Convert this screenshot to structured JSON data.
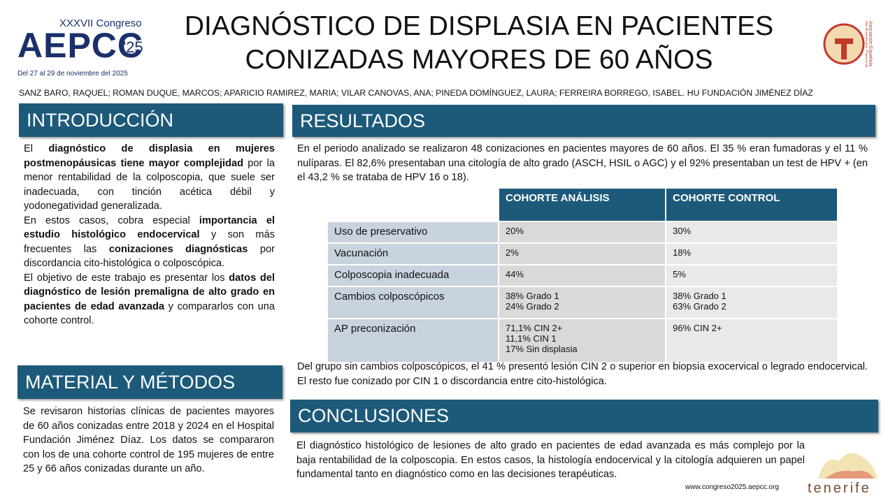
{
  "header": {
    "logo": {
      "edition": "XXXVII Congreso",
      "brand": "AEPCC",
      "year": "'25",
      "dates": "Del 27 al 29 de noviembre del 2025"
    },
    "title": [
      "DIAGNÓSTICO DE DISPLASIA EN PACIENTES",
      "CONIZADAS MAYORES DE 60 AÑOS"
    ],
    "society": "Asociación Española de Patología Cervical y Colposcopia",
    "authors": "SANZ BARO, RAQUEL; ROMAN DUQUE, MARCOS; APARICIO RAMIREZ, MARIA; VILAR CANOVAS, ANA; PINEDA DOMÍNGUEZ, LAURA; FERREIRA BORREGO, ISABEL. HU FUNDACIÓN JIMÉNEZ DÍAZ"
  },
  "introduccion": {
    "heading": "INTRODUCCIÓN",
    "paragraphs": [
      [
        {
          "text": "El ",
          "bold": false
        },
        {
          "text": "diagnóstico de displasia en mujeres postmenopáusicas tiene mayor complejidad",
          "bold": true
        },
        {
          "text": " por la menor rentabilidad de la colposcopia, que suele ser inadecuada, con tinción acética débil y yodonegatividad generalizada.",
          "bold": false
        }
      ],
      [
        {
          "text": "En estos casos, cobra especial ",
          "bold": false
        },
        {
          "text": "importancia el estudio histológico endocervical",
          "bold": true
        },
        {
          "text": " y son más frecuentes las ",
          "bold": false
        },
        {
          "text": "conizaciones diagnósticas",
          "bold": true
        },
        {
          "text": " por discordancia cito-histológica o colposcópica.",
          "bold": false
        }
      ],
      [
        {
          "text": "El objetivo de este trabajo es presentar los ",
          "bold": false
        },
        {
          "text": "datos del diagnóstico de lesión premaligna de alto grado en pacientes de edad avanzada",
          "bold": true
        },
        {
          "text": " y compararlos con una cohorte control.",
          "bold": false
        }
      ]
    ]
  },
  "material": {
    "heading": "MATERIAL Y MÉTODOS",
    "text": "Se revisaron historias clínicas de pacientes mayores de 60 años conizadas entre 2018 y 2024 en el Hospital Fundación Jiménez Díaz. Los datos se compararon con los de una cohorte control de 195 mujeres de entre 25 y 66 años conizadas durante un año."
  },
  "resultados": {
    "heading": "RESULTADOS",
    "intro": "En el periodo analizado se realizaron 48 conizaciones en pacientes mayores de 60 años. El 35 % eran fumadoras y el 11 % nulíparas. El 82,6% presentaban una citología de alto grado (ASCH, HSIL o AGC) y el 92% presentaban un test de HPV + (en el 43,2 % se trataba de HPV 16 o 18).",
    "table": {
      "columns": [
        "COHORTE ANÁLISIS",
        "COHORTE CONTROL"
      ],
      "rows": [
        {
          "label": "Uso de preservativo",
          "cells": [
            [
              "20%"
            ],
            [
              "30%"
            ]
          ]
        },
        {
          "label": "Vacunación",
          "cells": [
            [
              "2%"
            ],
            [
              "18%"
            ]
          ]
        },
        {
          "label": "Colposcopia inadecuada",
          "cells": [
            [
              "44%"
            ],
            [
              "5%"
            ]
          ]
        },
        {
          "label": "Cambios colposcópicos",
          "cells": [
            [
              "38% Grado 1",
              "24% Grado 2"
            ],
            [
              "38% Grado 1",
              "63% Grado 2"
            ]
          ]
        },
        {
          "label": "AP preconización",
          "cells": [
            [
              "71,1% CIN 2+",
              "11,1% CIN 1",
              "17% Sin displasia"
            ],
            [
              "96% CIN 2+"
            ]
          ]
        }
      ]
    },
    "outro": "Del grupo sin cambios colposcópicos, el 41 % presentó lesión CIN 2 o superior en biopsia exocervical o legrado endocervical. El resto fue conizado por CIN 1 o discordancia entre cito-histológica."
  },
  "conclusiones": {
    "heading": "CONCLUSIONES",
    "text": "El diagnóstico histológico de lesiones de alto grado en pacientes de edad avanzada es más complejo por la baja rentabilidad de la colposcopia. En estos casos, la histología endocervical y la citología adquieren un papel fundamental tanto en diagnóstico como en las decisiones terapéuticas."
  },
  "footer": {
    "url": "www.congreso2025.aepcc.org",
    "place": "tenerife"
  }
}
